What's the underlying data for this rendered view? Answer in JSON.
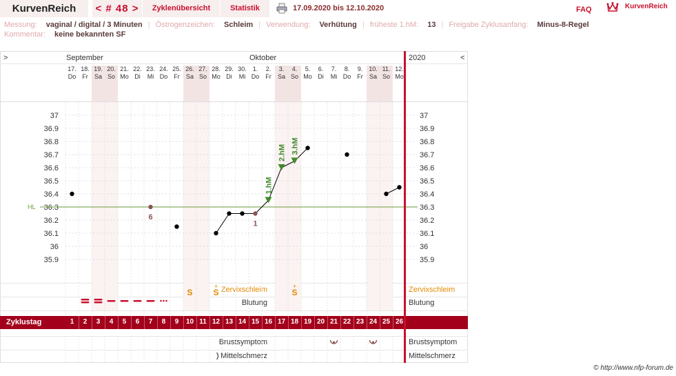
{
  "header": {
    "logo": "KurvenReich",
    "cycle_nav": "< # 48 >",
    "tab_overview": "Zyklenübersicht",
    "tab_stats": "Statistik",
    "date_range": "17.09.2020 bis 12.10.2020",
    "faq": "FAQ",
    "brand": "KurvenReich"
  },
  "info": {
    "messung_label": "Messung:",
    "messung_value": "vaginal / digital / 3 Minuten",
    "oestrogen_label": "Östrogenzeichen:",
    "oestrogen_value": "Schleim",
    "verwendung_label": "Verwendung:",
    "verwendung_value": "Verhütung",
    "frueheste_label": "früheste 1.hM:",
    "frueheste_value": "13",
    "freigabe_label": "Freigabe Zyklusanfang:",
    "freigabe_value": "Minus-8-Regel",
    "kommentar_label": "Kommentar:",
    "kommentar_value": "keine bekannten SF"
  },
  "chart_header": {
    "arrow_left": ">",
    "arrow_right": "<",
    "month1": "September",
    "month2": "Oktober",
    "year": "2020",
    "days": [
      {
        "d": "17.",
        "w": "Do",
        "we": false
      },
      {
        "d": "18.",
        "w": "Fr",
        "we": false
      },
      {
        "d": "19.",
        "w": "Sa",
        "we": true
      },
      {
        "d": "20.",
        "w": "So",
        "we": true
      },
      {
        "d": "21.",
        "w": "Mo",
        "we": false
      },
      {
        "d": "22.",
        "w": "Di",
        "we": false
      },
      {
        "d": "23.",
        "w": "Mi",
        "we": false
      },
      {
        "d": "24.",
        "w": "Do",
        "we": false
      },
      {
        "d": "25.",
        "w": "Fr",
        "we": false
      },
      {
        "d": "26.",
        "w": "Sa",
        "we": true
      },
      {
        "d": "27.",
        "w": "So",
        "we": true
      },
      {
        "d": "28.",
        "w": "Mo",
        "we": false
      },
      {
        "d": "29.",
        "w": "Di",
        "we": false
      },
      {
        "d": "30.",
        "w": "Mi",
        "we": false
      },
      {
        "d": "1.",
        "w": "Do",
        "we": false
      },
      {
        "d": "2.",
        "w": "Fr",
        "we": false
      },
      {
        "d": "3.",
        "w": "Sa",
        "we": true
      },
      {
        "d": "4.",
        "w": "So",
        "we": true
      },
      {
        "d": "5.",
        "w": "Mo",
        "we": false
      },
      {
        "d": "6.",
        "w": "Di",
        "we": false
      },
      {
        "d": "7.",
        "w": "Mi",
        "we": false
      },
      {
        "d": "8.",
        "w": "Do",
        "we": false
      },
      {
        "d": "9.",
        "w": "Fr",
        "we": false
      },
      {
        "d": "10.",
        "w": "Sa",
        "we": true
      },
      {
        "d": "11.",
        "w": "So",
        "we": true
      },
      {
        "d": "12.",
        "w": "Mo",
        "we": false
      }
    ]
  },
  "chart_data": {
    "type": "line",
    "ylim": [
      35.9,
      37.0
    ],
    "yticks": [
      "37",
      "36.9",
      "36.8",
      "36.7",
      "36.6",
      "36.5",
      "36.4",
      "36.3",
      "36.2",
      "36.1",
      "36",
      "35.9"
    ],
    "hl_label": "HL",
    "hl_value": 36.3,
    "series": [
      {
        "values": [
          36.4,
          null,
          null,
          null,
          null,
          null,
          36.3,
          null,
          36.15,
          null,
          null,
          36.1,
          36.25,
          36.25,
          36.25,
          36.35,
          36.6,
          36.65,
          36.75,
          null,
          null,
          36.7,
          null,
          null,
          36.4,
          36.45
        ]
      }
    ],
    "low_markers": [
      {
        "day": 7,
        "label": "6"
      },
      {
        "day": 15,
        "label": "1"
      }
    ],
    "high_markers": [
      {
        "day": 16,
        "label": "1.hM"
      },
      {
        "day": 17,
        "label": "2.hM"
      },
      {
        "day": 18,
        "label": "3.hM"
      }
    ]
  },
  "rows": {
    "zervix_label": "Zervixschleim",
    "blutung_label": "Blutung",
    "zyklustag_label": "Zyklustag",
    "brust_label": "Brustsymptom",
    "mittel_label": "Mittelschmerz",
    "zervix_marks": [
      {
        "day": 10,
        "sym": "S"
      },
      {
        "day": 12,
        "sym": "S+"
      },
      {
        "day": 18,
        "sym": "S+"
      }
    ],
    "blutung_marks": [
      {
        "day": 2,
        "kind": "heavy"
      },
      {
        "day": 3,
        "kind": "heavy"
      },
      {
        "day": 4,
        "kind": "medium"
      },
      {
        "day": 5,
        "kind": "medium"
      },
      {
        "day": 6,
        "kind": "medium"
      },
      {
        "day": 7,
        "kind": "medium"
      },
      {
        "day": 8,
        "kind": "spotting"
      }
    ],
    "brust_marks": [
      21,
      24
    ],
    "mittel_marks": [
      12
    ],
    "zyklustage": [
      "1",
      "2",
      "3",
      "4",
      "5",
      "6",
      "7",
      "8",
      "9",
      "10",
      "11",
      "12",
      "13",
      "14",
      "15",
      "16",
      "17",
      "18",
      "19",
      "20",
      "21",
      "22",
      "23",
      "24",
      "25",
      "26"
    ]
  },
  "colors": {
    "accent": "#c8102e",
    "dark_red": "#a3001b",
    "hl_line": "#6a9a3a",
    "marker_green": "#3f8a2a",
    "marker_low": "#8a5555",
    "zervix": "#e38a00"
  },
  "footer": {
    "copyright": "© http://www.nfp-forum.de"
  }
}
